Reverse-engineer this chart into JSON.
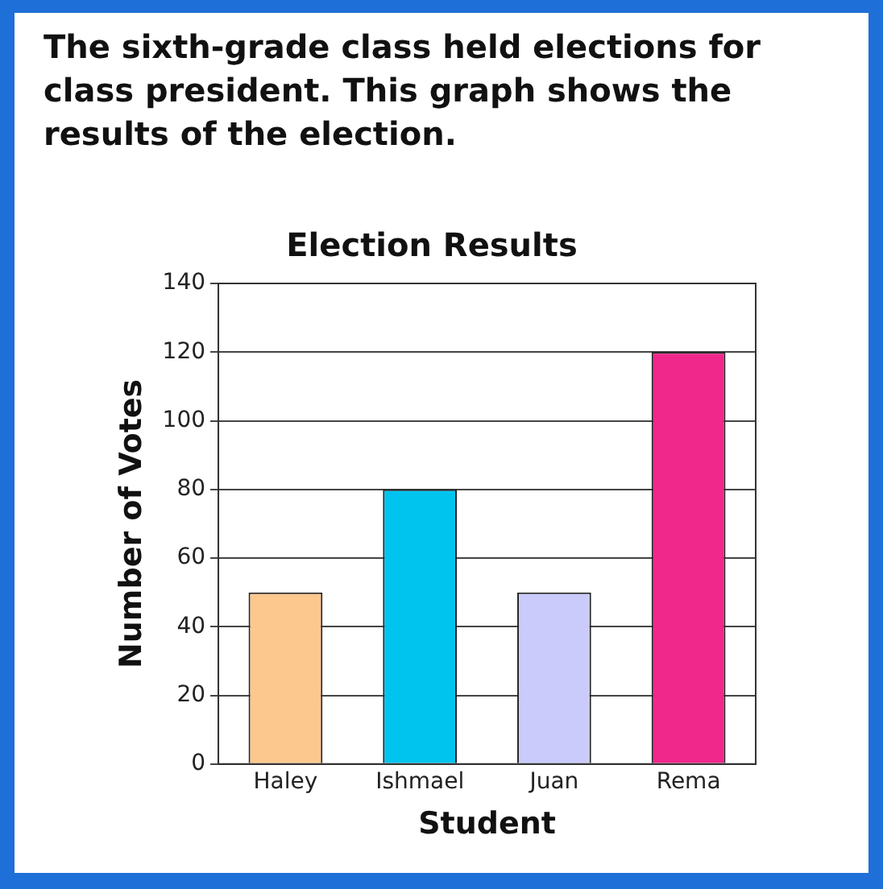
{
  "chart_data": {
    "type": "bar",
    "title": "Election Results",
    "annotations": [
      "The sixth-grade class held elections for class president. This graph shows the results of the election."
    ],
    "xlabel": "Student",
    "ylabel": "Number of Votes",
    "categories": [
      "Haley",
      "Ishmael",
      "Juan",
      "Rema"
    ],
    "values": [
      50,
      80,
      50,
      120
    ],
    "colors": [
      "#fcc88e",
      "#00c4ee",
      "#cacbfb",
      "#f0288c"
    ],
    "ylim": [
      0,
      140
    ],
    "yticks": [
      0,
      20,
      40,
      60,
      80,
      100,
      120,
      140
    ],
    "grid": "y",
    "legend": false
  }
}
